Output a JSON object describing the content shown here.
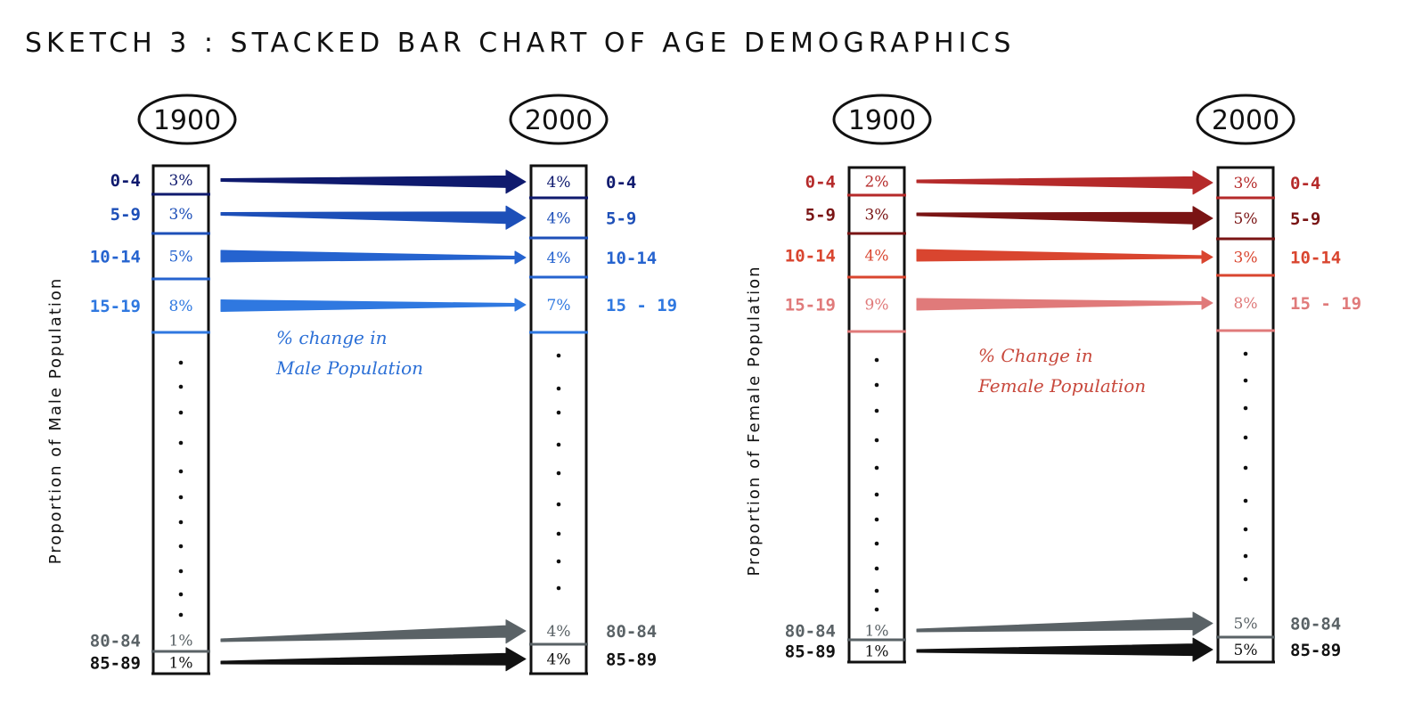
{
  "title": "SKETCH 3 : STACKED BAR CHART OF AGE DEMOGRAPHICS",
  "colors": {
    "ink": "#111111",
    "grey": "#5a6266"
  },
  "panels": [
    {
      "id": "male",
      "year_start": "1900",
      "year_end": "2000",
      "y_label": "Proportion of Male Population",
      "annotation": [
        "% change in",
        "Male Population"
      ],
      "annotation_color": "#2b6fd6",
      "rows": [
        {
          "age_left": "0-4",
          "age_right": "0-4",
          "pct_1900": "3%",
          "pct_2000": "4%",
          "color": "#0f1a6e",
          "growth": "up"
        },
        {
          "age_left": "5-9",
          "age_right": "5-9",
          "pct_1900": "3%",
          "pct_2000": "4%",
          "color": "#1d4fb8",
          "growth": "up"
        },
        {
          "age_left": "10-14",
          "age_right": "10-14",
          "pct_1900": "5%",
          "pct_2000": "4%",
          "color": "#2563cf",
          "growth": "down"
        },
        {
          "age_left": "15-19",
          "age_right": "15 - 19",
          "pct_1900": "8%",
          "pct_2000": "7%",
          "color": "#2f78e0",
          "growth": "down"
        },
        {
          "age_left": "80-84",
          "age_right": "80-84",
          "pct_1900": "1%",
          "pct_2000": "4%",
          "color": "#5a6266",
          "growth": "up"
        },
        {
          "age_left": "85-89",
          "age_right": "85-89",
          "pct_1900": "1%",
          "pct_2000": "4%",
          "color": "#111111",
          "growth": "up"
        }
      ]
    },
    {
      "id": "female",
      "year_start": "1900",
      "year_end": "2000",
      "y_label": "Proportion of Female Population",
      "annotation": [
        "% Change in",
        "Female Population"
      ],
      "annotation_color": "#c8483c",
      "rows": [
        {
          "age_left": "0-4",
          "age_right": "0-4",
          "pct_1900": "2%",
          "pct_2000": "3%",
          "color": "#b52a2a",
          "growth": "up"
        },
        {
          "age_left": "5-9",
          "age_right": "5-9",
          "pct_1900": "3%",
          "pct_2000": "5%",
          "color": "#7a1414",
          "growth": "up"
        },
        {
          "age_left": "10-14",
          "age_right": "10-14",
          "pct_1900": "4%",
          "pct_2000": "3%",
          "color": "#d9452f",
          "growth": "down"
        },
        {
          "age_left": "15-19",
          "age_right": "15 - 19",
          "pct_1900": "9%",
          "pct_2000": "8%",
          "color": "#e07a7a",
          "growth": "down"
        },
        {
          "age_left": "80-84",
          "age_right": "80-84",
          "pct_1900": "1%",
          "pct_2000": "5%",
          "color": "#5a6266",
          "growth": "up"
        },
        {
          "age_left": "85-89",
          "age_right": "85-89",
          "pct_1900": "1%",
          "pct_2000": "5%",
          "color": "#111111",
          "growth": "up"
        }
      ]
    }
  ]
}
